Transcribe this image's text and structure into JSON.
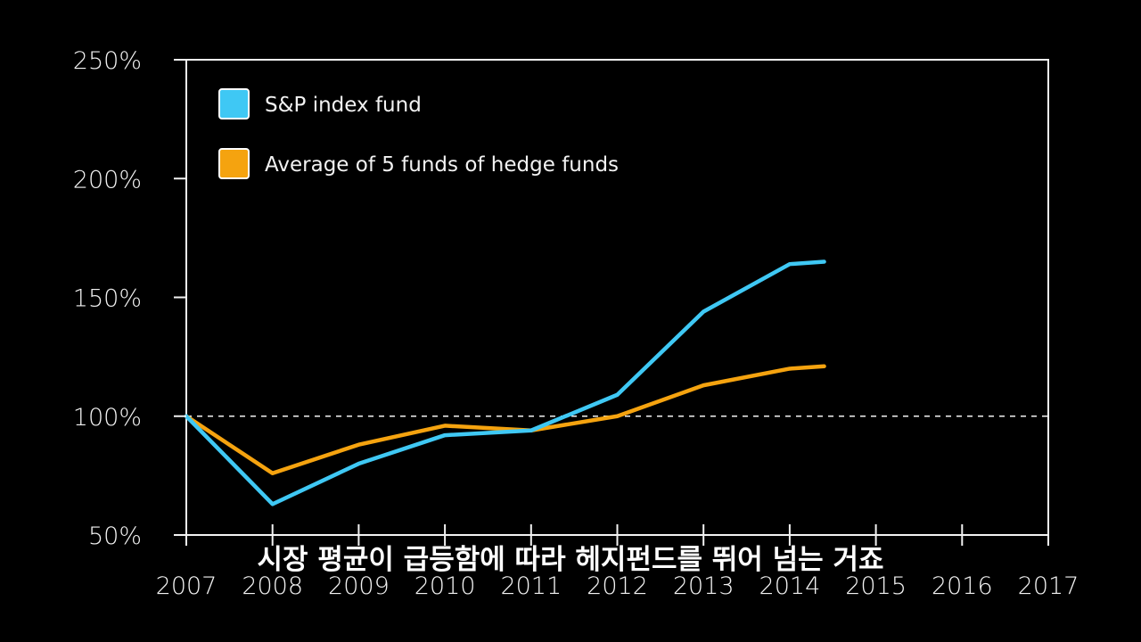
{
  "chart_data": {
    "type": "line",
    "x": [
      2007,
      2008,
      2009,
      2010,
      2011,
      2012,
      2013,
      2014,
      2014.4
    ],
    "x_ticks": [
      "2007",
      "2008",
      "2009",
      "2010",
      "2011",
      "2012",
      "2013",
      "2014",
      "2015",
      "2016",
      "2017"
    ],
    "xlim": [
      2007,
      2017
    ],
    "y_ticks": [
      "250%",
      "200%",
      "150%",
      "100%",
      "50%"
    ],
    "ylim": [
      50,
      250
    ],
    "reference_line": 100,
    "series": [
      {
        "name": "S&P index fund",
        "color": "#3fc8f4",
        "values": [
          100,
          63,
          80,
          92,
          94,
          109,
          144,
          164,
          165
        ]
      },
      {
        "name": "Average of 5 funds of hedge funds",
        "color": "#f5a30f",
        "values": [
          100,
          76,
          88,
          96,
          94,
          100,
          113,
          120,
          121
        ]
      }
    ],
    "legend_position": "top-left",
    "grid": false
  },
  "subtitle": "시장 평균이 급등함에 따라 헤지펀드를 뛰어 넘는 거죠"
}
